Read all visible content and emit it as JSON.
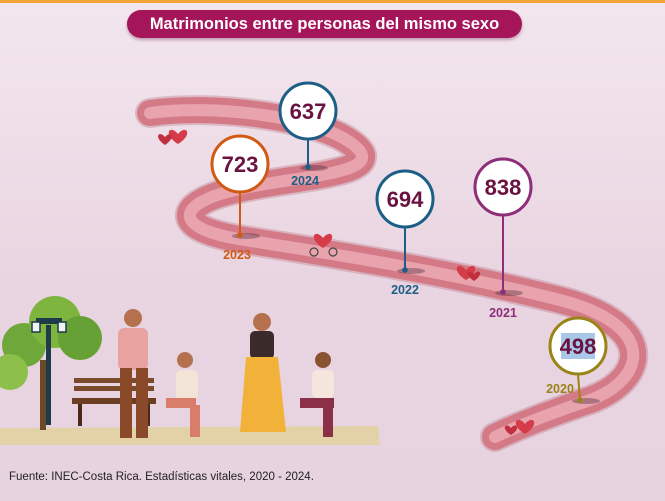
{
  "header": {
    "title": "Matrimonios entre personas del mismo sexo"
  },
  "footer": {
    "source": "Fuente: INEC-Costa Rica. Estadísticas vitales, 2020 - 2024."
  },
  "chart_data": {
    "type": "bar",
    "title": "Matrimonios entre personas del mismo sexo",
    "categories": [
      "2020",
      "2021",
      "2022",
      "2023",
      "2024"
    ],
    "values": [
      498,
      838,
      694,
      723,
      637
    ],
    "colors": [
      "#9a8417",
      "#8e2e7a",
      "#1c5e86",
      "#d05a14",
      "#1c5e86"
    ],
    "grid": false,
    "legend": "none"
  }
}
